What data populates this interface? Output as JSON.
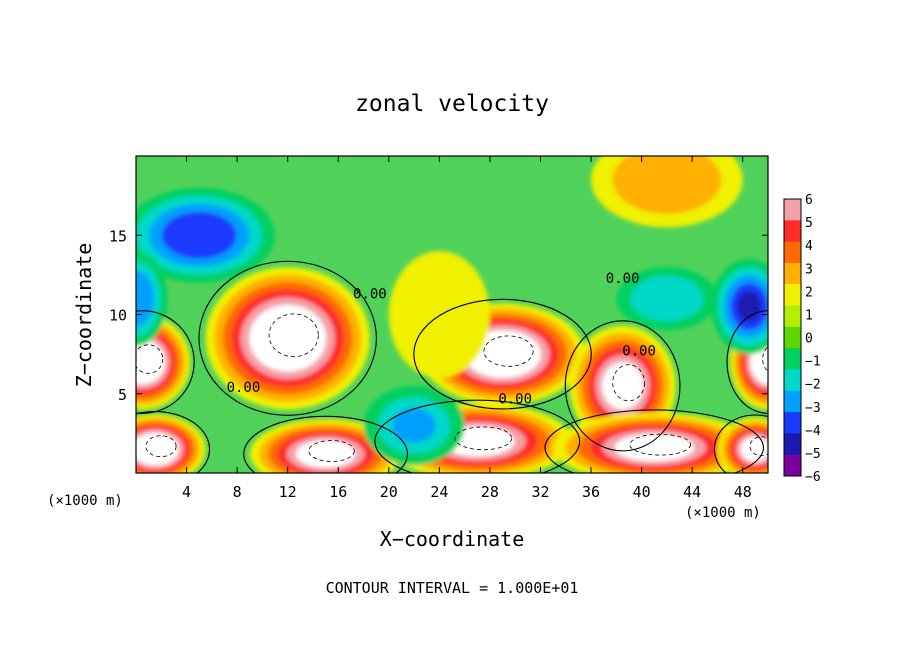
{
  "chart_data": {
    "type": "heatmap",
    "title": "zonal velocity",
    "xlabel": "X−coordinate",
    "ylabel": "Z−coordinate",
    "x_unit_left": "(×1000 m)",
    "x_unit_right": "(×1000 m)",
    "footer": "CONTOUR INTERVAL = 1.000E+01",
    "x_ticks": [
      "4",
      "8",
      "12",
      "16",
      "20",
      "24",
      "28",
      "32",
      "36",
      "40",
      "44",
      "48"
    ],
    "y_ticks": [
      "5",
      "10",
      "15"
    ],
    "xlim": [
      0,
      50
    ],
    "ylim": [
      0,
      20
    ],
    "colorbar": {
      "ticks": [
        "6",
        "5",
        "4",
        "3",
        "2",
        "1",
        "0",
        "−1",
        "−2",
        "−3",
        "−4",
        "−5",
        "−6"
      ],
      "colors": [
        "#f4a0a8",
        "#ff2a2a",
        "#ff6a00",
        "#ffb000",
        "#f0f000",
        "#b4ee00",
        "#5ad800",
        "#00d060",
        "#00d8c8",
        "#00a0ff",
        "#1a3aff",
        "#1a1ab0",
        "#7a00a0"
      ],
      "range": [
        -6,
        6
      ]
    },
    "contour_labels": [
      {
        "text": "0.00",
        "x": 8.5,
        "z": 5.1
      },
      {
        "text": "0.00",
        "x": 30,
        "z": 4.4
      },
      {
        "text": "0.00",
        "x": 39.8,
        "z": 7.4
      },
      {
        "text": "0.00",
        "x": 38.5,
        "z": 12
      },
      {
        "text": "0.00",
        "x": 18.5,
        "z": 11
      }
    ],
    "features": [
      {
        "kind": "pos_blob",
        "x": 12,
        "z": 8.5,
        "rx": 6.5,
        "rz": 4.5,
        "value": 8
      },
      {
        "kind": "pos_blob",
        "x": 29,
        "z": 7.5,
        "rx": 6.5,
        "rz": 3.2,
        "value": 8
      },
      {
        "kind": "pos_blob",
        "x": 38.5,
        "z": 5.5,
        "rx": 4.2,
        "rz": 3.8,
        "value": 7
      },
      {
        "kind": "pos_blob",
        "x": 0.5,
        "z": 7,
        "rx": 3.8,
        "rz": 3,
        "value": 8
      },
      {
        "kind": "pos_blob",
        "x": 50,
        "z": 7,
        "rx": 3,
        "rz": 3,
        "value": 8
      },
      {
        "kind": "pos_blob",
        "x": 15,
        "z": 1.2,
        "rx": 6,
        "rz": 2.2,
        "value": 7
      },
      {
        "kind": "pos_blob",
        "x": 27,
        "z": 2,
        "rx": 7.5,
        "rz": 2.4,
        "value": 7
      },
      {
        "kind": "pos_blob",
        "x": 41,
        "z": 1.6,
        "rx": 8,
        "rz": 2.2,
        "value": 7
      },
      {
        "kind": "pos_blob",
        "x": 1.5,
        "z": 1.5,
        "rx": 4,
        "rz": 2.2,
        "value": 8
      },
      {
        "kind": "pos_blob",
        "x": 49,
        "z": 1.5,
        "rx": 3,
        "rz": 2,
        "value": 7
      },
      {
        "kind": "neg_blob",
        "x": 5,
        "z": 15,
        "rx": 6,
        "rz": 3,
        "value": -4.5
      },
      {
        "kind": "neg_blob",
        "x": 48.5,
        "z": 10.5,
        "rx": 3,
        "rz": 3,
        "value": -5
      },
      {
        "kind": "neg_blob",
        "x": 0,
        "z": 11,
        "rx": 2.5,
        "rz": 3,
        "value": -3.5
      },
      {
        "kind": "neg_blob",
        "x": 22,
        "z": 3,
        "rx": 4,
        "rz": 2.5,
        "value": -3
      },
      {
        "kind": "neg_blob",
        "x": 42,
        "z": 11,
        "rx": 4,
        "rz": 2,
        "value": -2.5
      },
      {
        "kind": "pos_blob",
        "x": 42,
        "z": 18.5,
        "rx": 6,
        "rz": 3,
        "value": 3
      },
      {
        "kind": "pos_blob",
        "x": 24,
        "z": 10,
        "rx": 4,
        "rz": 4,
        "value": 1.5
      }
    ]
  }
}
